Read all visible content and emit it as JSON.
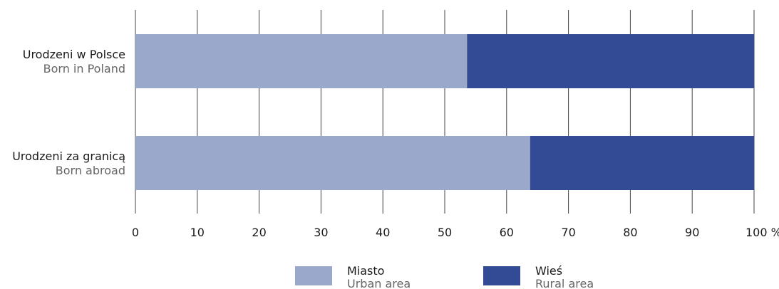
{
  "chart_data": {
    "type": "bar",
    "orientation": "horizontal",
    "stacked": true,
    "categories": [
      {
        "label_pl": "Urodzeni w Polsce",
        "label_en": "Born in Poland"
      },
      {
        "label_pl": "Urodzeni za granicą",
        "label_en": "Born abroad"
      }
    ],
    "series": [
      {
        "name_pl": "Miasto",
        "name_en": "Urban area",
        "color": "#9aa8cb",
        "values": [
          53.6,
          63.8
        ]
      },
      {
        "name_pl": "Wieś",
        "name_en": "Rural area",
        "color": "#334a94",
        "values": [
          46.4,
          36.2
        ]
      }
    ],
    "xlim": [
      0,
      100
    ],
    "xticks": [
      "0",
      "10",
      "20",
      "30",
      "40",
      "50",
      "60",
      "70",
      "80",
      "90",
      "100 %"
    ],
    "grid": true,
    "legend_position": "bottom"
  }
}
